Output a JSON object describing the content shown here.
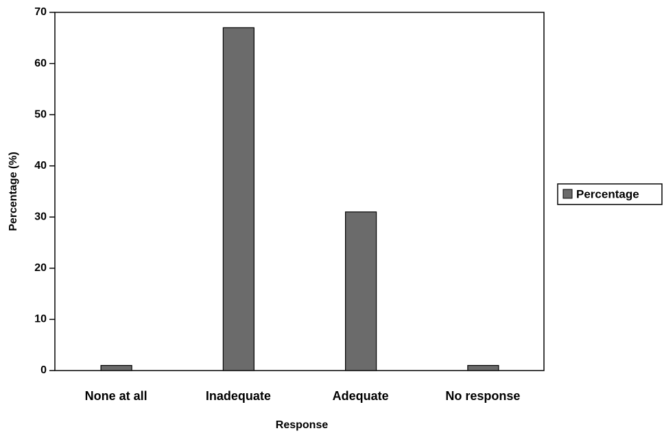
{
  "chart_data": {
    "type": "bar",
    "categories": [
      "None at all",
      "Inadequate",
      "Adequate",
      "No response"
    ],
    "values": [
      1,
      67,
      31,
      1
    ],
    "color": "#6b6b6b",
    "ylim": [
      0,
      70
    ],
    "yticks": [
      0,
      10,
      20,
      30,
      40,
      50,
      60,
      70
    ],
    "x_label": "Response",
    "y_label": "Percentage (%)",
    "legend": "Percentage",
    "legend_position": "right",
    "grid": false
  }
}
